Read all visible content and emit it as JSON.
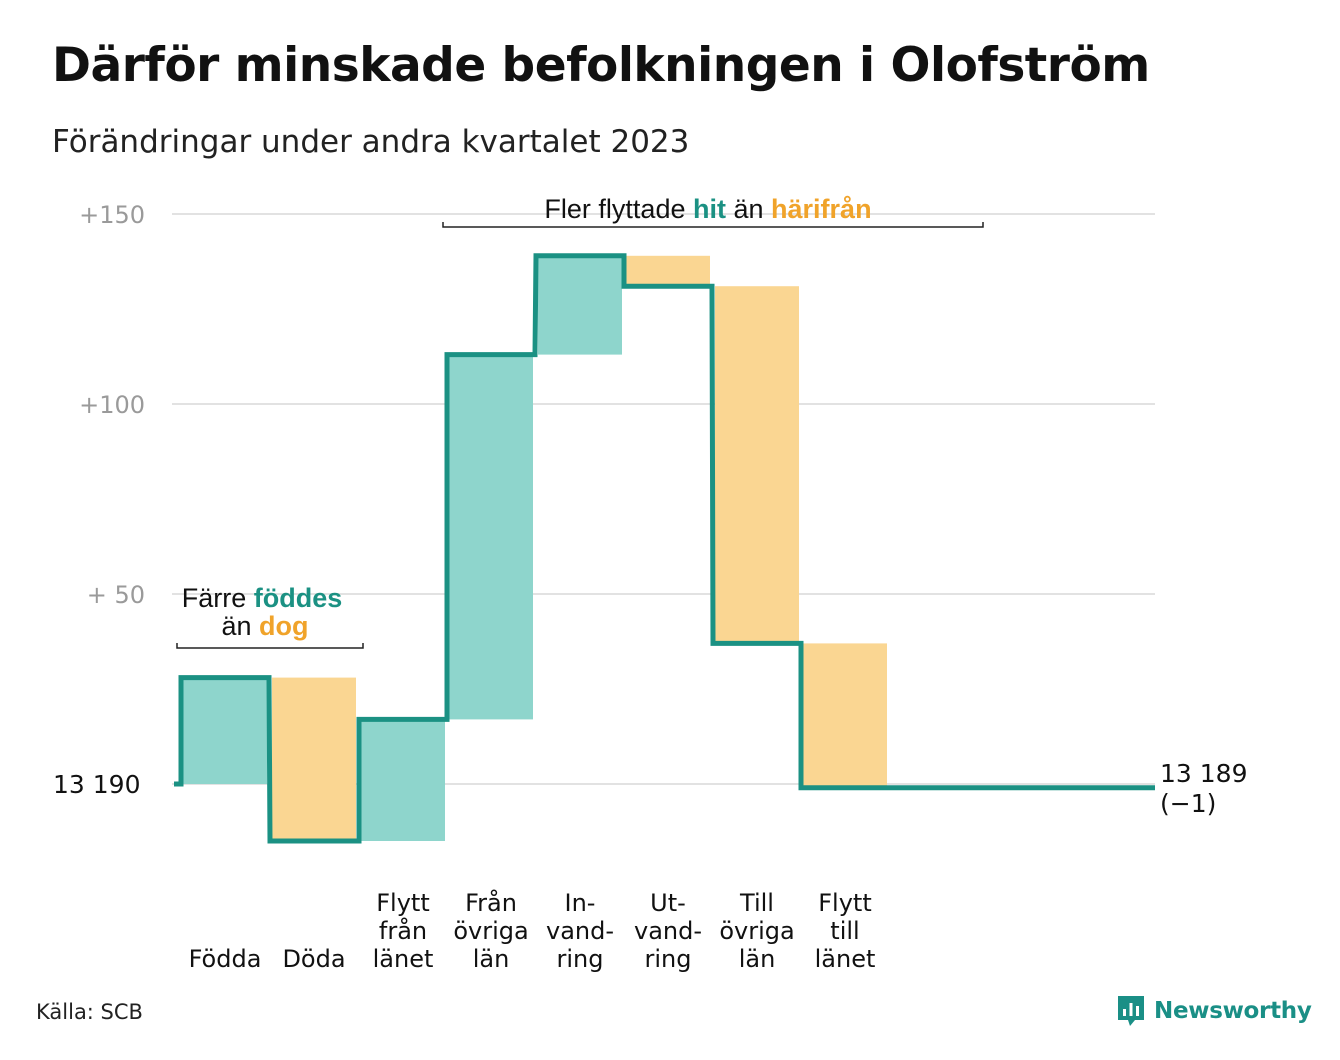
{
  "title": "Därför minskade befolkningen i Olofström",
  "subtitle": "Förändringar under andra kvartalet 2023",
  "source": "Källa: SCB",
  "brand": "Newsworthy",
  "colors": {
    "increase": "#8ed5cc",
    "decrease": "#fad692",
    "line": "#1b9183",
    "accent_teal": "#1b9183",
    "accent_orange": "#f0a32a",
    "grid": "#e2e2e2",
    "tick": "#9a9a9a"
  },
  "chart_data": {
    "type": "waterfall",
    "baseline": 13190,
    "baseline_label": "13  190",
    "end_value_label": "13 189",
    "end_change_label": "(−1)",
    "yticks": [
      {
        "value": 50,
        "label": "+  50"
      },
      {
        "value": 100,
        "label": "+100"
      },
      {
        "value": 150,
        "label": "+150"
      }
    ],
    "grid": true,
    "steps": [
      {
        "category": "Födda",
        "label_lines": [
          "Födda"
        ],
        "value": 28
      },
      {
        "category": "Döda",
        "label_lines": [
          "Döda"
        ],
        "value": -43
      },
      {
        "category": "Flytt från länet",
        "label_lines": [
          "Flytt",
          "från",
          "länet"
        ],
        "value": 32
      },
      {
        "category": "Från övriga län",
        "label_lines": [
          "Från",
          "övriga",
          "län"
        ],
        "value": 96
      },
      {
        "category": "Invandring",
        "label_lines": [
          "In-",
          "vand-",
          "ring"
        ],
        "value": 26
      },
      {
        "category": "Utvandring",
        "label_lines": [
          "Ut-",
          "vand-",
          "ring"
        ],
        "value": -8
      },
      {
        "category": "Till övriga län",
        "label_lines": [
          "Till",
          "övriga",
          "län"
        ],
        "value": -94
      },
      {
        "category": "Flytt till länet",
        "label_lines": [
          "Flytt",
          "till",
          "länet"
        ],
        "value": -38
      }
    ],
    "annotations": {
      "births": {
        "pre": "Färre",
        "hi_increase": "föddes",
        "mid": "än",
        "hi_decrease": "dog"
      },
      "moves": {
        "pre": "Fler flyttade",
        "hi_increase": "hit",
        "mid": "än",
        "hi_decrease": "härifrån"
      }
    }
  }
}
